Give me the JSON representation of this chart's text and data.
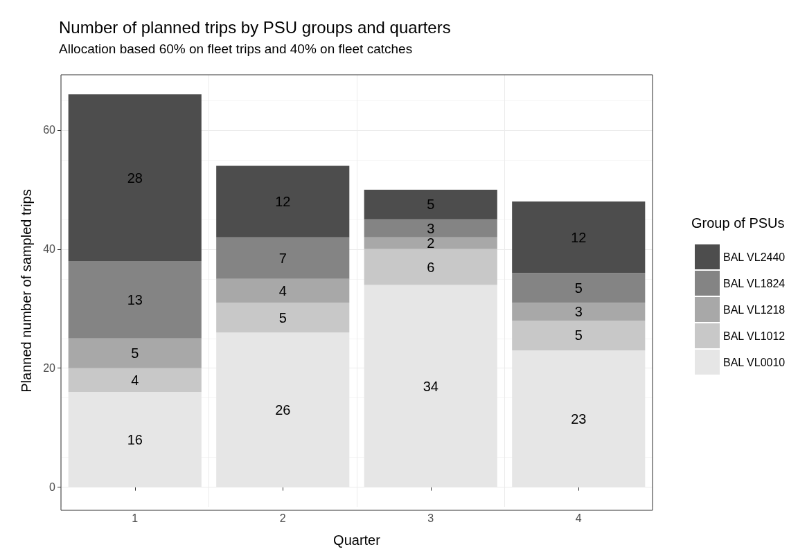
{
  "chart_data": {
    "type": "bar",
    "title": "Number of planned trips by PSU groups and quarters",
    "subtitle": "Allocation based 60% on fleet trips and 40% on fleet catches",
    "xlabel": "Quarter",
    "ylabel": "Planned number of sampled trips",
    "legend_title": "Group of PSUs",
    "categories": [
      "1",
      "2",
      "3",
      "4"
    ],
    "stacked": true,
    "data_labels": true,
    "grid": true,
    "legend": "right",
    "ylim": [
      -3.3,
      69.3
    ],
    "yticks": [
      0,
      20,
      40,
      60
    ],
    "series": [
      {
        "name": "BAL VL0010",
        "color": "#e6e6e6",
        "values": [
          16,
          26,
          34,
          23
        ]
      },
      {
        "name": "BAL VL1012",
        "color": "#c8c8c8",
        "values": [
          4,
          5,
          6,
          5
        ]
      },
      {
        "name": "BAL VL1218",
        "color": "#a8a8a8",
        "values": [
          5,
          4,
          2,
          3
        ]
      },
      {
        "name": "BAL VL1824",
        "color": "#848484",
        "values": [
          13,
          7,
          3,
          5
        ]
      },
      {
        "name": "BAL VL2440",
        "color": "#4d4d4d",
        "values": [
          28,
          12,
          5,
          12
        ]
      }
    ]
  }
}
